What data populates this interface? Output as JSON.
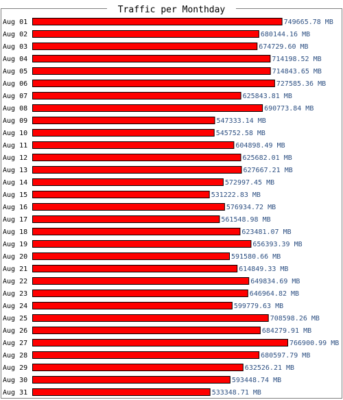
{
  "chart_data": {
    "type": "bar",
    "orientation": "horizontal",
    "title": "Traffic per Monthday",
    "categories": [
      "Aug 01",
      "Aug 02",
      "Aug 03",
      "Aug 04",
      "Aug 05",
      "Aug 06",
      "Aug 07",
      "Aug 08",
      "Aug 09",
      "Aug 10",
      "Aug 11",
      "Aug 12",
      "Aug 13",
      "Aug 14",
      "Aug 15",
      "Aug 16",
      "Aug 17",
      "Aug 18",
      "Aug 19",
      "Aug 20",
      "Aug 21",
      "Aug 22",
      "Aug 23",
      "Aug 24",
      "Aug 25",
      "Aug 26",
      "Aug 27",
      "Aug 28",
      "Aug 29",
      "Aug 30",
      "Aug 31"
    ],
    "values": [
      749665.78,
      680144.16,
      674729.6,
      714198.52,
      714843.65,
      727585.36,
      625843.81,
      690773.84,
      547333.14,
      545752.58,
      604898.49,
      625682.01,
      627667.21,
      572997.45,
      531222.83,
      576934.72,
      561548.98,
      623481.07,
      656393.39,
      591580.66,
      614849.33,
      649834.69,
      646964.82,
      599779.63,
      708598.26,
      684279.91,
      766900.99,
      680597.79,
      632526.21,
      593448.74,
      533348.71
    ],
    "value_labels": [
      "749665.78 MB",
      "680144.16 MB",
      "674729.60 MB",
      "714198.52 MB",
      "714843.65 MB",
      "727585.36 MB",
      "625843.81 MB",
      "690773.84 MB",
      "547333.14 MB",
      "545752.58 MB",
      "604898.49 MB",
      "625682.01 MB",
      "627667.21 MB",
      "572997.45 MB",
      "531222.83 MB",
      "576934.72 MB",
      "561548.98 MB",
      "623481.07 MB",
      "656393.39 MB",
      "591580.66 MB",
      "614849.33 MB",
      "649834.69 MB",
      "646964.82 MB",
      "599779.63 MB",
      "708598.26 MB",
      "684279.91 MB",
      "766900.99 MB",
      "680597.79 MB",
      "632526.21 MB",
      "593448.74 MB",
      "533348.71 MB"
    ],
    "unit": "MB",
    "xlim": [
      0,
      766900.99
    ],
    "grid": false,
    "colors": {
      "bar_fill": "#ff0000",
      "bar_stroke": "#000000",
      "value_text": "#2c4f82",
      "frame": "#808080",
      "background": "#ffffff"
    }
  }
}
